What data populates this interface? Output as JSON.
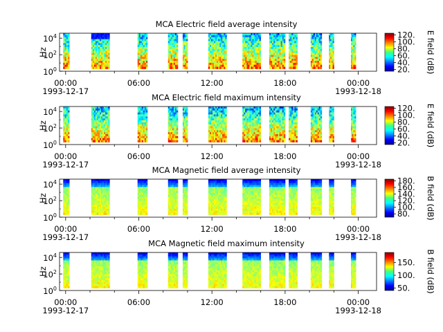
{
  "chart_data": [
    {
      "type": "heatmap",
      "title": "MCA  Electric field average intensity",
      "ylabel": "Hz",
      "colorbar_label": "E field (dB)",
      "colorbar_ticks": [
        "20.",
        "40.",
        "60.",
        "80.",
        "100.",
        "120."
      ],
      "colorbar_range": [
        15,
        125
      ],
      "y_ticks": [
        {
          "base": "10",
          "exp": "0"
        },
        {
          "base": "10",
          "exp": "2"
        },
        {
          "base": "10",
          "exp": "4"
        }
      ],
      "x_ticks": [
        {
          "time": "00:00",
          "date": "1993-12-17"
        },
        {
          "time": "06:00"
        },
        {
          "time": "12:00"
        },
        {
          "time": "18:00"
        },
        {
          "time": "00:00",
          "date": "1993-12-18"
        }
      ],
      "x_range_hours": [
        -0.5,
        25.5
      ],
      "data_blocks_hours": [
        [
          -0.2,
          0.3
        ],
        [
          2.1,
          3.6
        ],
        [
          5.9,
          6.7
        ],
        [
          8.4,
          9.2
        ],
        [
          9.6,
          10.0
        ],
        [
          11.7,
          13.2
        ],
        [
          14.5,
          16.0
        ],
        [
          16.7,
          18.0
        ],
        [
          18.3,
          19.0
        ],
        [
          20.1,
          21.0
        ],
        [
          21.6,
          22.0
        ],
        [
          23.4,
          23.8
        ]
      ],
      "colors_reference": "#000080"
    },
    {
      "type": "heatmap",
      "title": "MCA  Electric field maximum intensity",
      "ylabel": "Hz",
      "colorbar_label": "E field (dB)",
      "colorbar_ticks": [
        "20.",
        "40.",
        "60.",
        "80.",
        "100.",
        "120."
      ],
      "colorbar_range": [
        15,
        125
      ],
      "y_ticks": [
        {
          "base": "10",
          "exp": "0"
        },
        {
          "base": "10",
          "exp": "2"
        },
        {
          "base": "10",
          "exp": "4"
        }
      ],
      "x_ticks": [
        {
          "time": "00:00",
          "date": "1993-12-17"
        },
        {
          "time": "06:00"
        },
        {
          "time": "12:00"
        },
        {
          "time": "18:00"
        },
        {
          "time": "00:00",
          "date": "1993-12-18"
        }
      ],
      "x_range_hours": [
        -0.5,
        25.5
      ],
      "data_blocks_hours": [
        [
          -0.2,
          0.3
        ],
        [
          2.1,
          3.6
        ],
        [
          5.9,
          6.7
        ],
        [
          8.4,
          9.2
        ],
        [
          9.6,
          10.0
        ],
        [
          11.7,
          13.2
        ],
        [
          14.5,
          16.0
        ],
        [
          16.7,
          18.0
        ],
        [
          18.3,
          19.0
        ],
        [
          20.1,
          21.0
        ],
        [
          21.6,
          22.0
        ],
        [
          23.4,
          23.8
        ]
      ]
    },
    {
      "type": "heatmap",
      "title": "MCA  Magnetic field average intensity",
      "ylabel": "Hz",
      "colorbar_label": "B field (dB)",
      "colorbar_ticks": [
        "80.",
        "100.",
        "120.",
        "140.",
        "160.",
        "180."
      ],
      "colorbar_range": [
        70,
        185
      ],
      "y_ticks": [
        {
          "base": "10",
          "exp": "0"
        },
        {
          "base": "10",
          "exp": "2"
        },
        {
          "base": "10",
          "exp": "4"
        }
      ],
      "x_ticks": [
        {
          "time": "00:00",
          "date": "1993-12-17"
        },
        {
          "time": "06:00"
        },
        {
          "time": "12:00"
        },
        {
          "time": "18:00"
        },
        {
          "time": "00:00",
          "date": "1993-12-18"
        }
      ],
      "x_range_hours": [
        -0.5,
        25.5
      ],
      "data_blocks_hours": [
        [
          -0.2,
          0.3
        ],
        [
          2.1,
          3.6
        ],
        [
          5.9,
          6.7
        ],
        [
          8.4,
          9.2
        ],
        [
          9.6,
          10.0
        ],
        [
          11.7,
          13.2
        ],
        [
          14.5,
          16.0
        ],
        [
          16.7,
          18.0
        ],
        [
          18.3,
          19.0
        ],
        [
          20.1,
          21.0
        ],
        [
          21.6,
          22.0
        ],
        [
          23.4,
          23.8
        ]
      ]
    },
    {
      "type": "heatmap",
      "title": "MCA  Magnetic field maximum intensity",
      "ylabel": "Hz",
      "colorbar_label": "B field (dB)",
      "colorbar_ticks": [
        "50.",
        "100.",
        "150."
      ],
      "colorbar_range": [
        40,
        190
      ],
      "y_ticks": [
        {
          "base": "10",
          "exp": "0"
        },
        {
          "base": "10",
          "exp": "2"
        },
        {
          "base": "10",
          "exp": "4"
        }
      ],
      "x_ticks": [
        {
          "time": "00:00",
          "date": "1993-12-17"
        },
        {
          "time": "06:00"
        },
        {
          "time": "12:00"
        },
        {
          "time": "18:00"
        },
        {
          "time": "00:00",
          "date": "1993-12-18"
        }
      ],
      "x_range_hours": [
        -0.5,
        25.5
      ],
      "data_blocks_hours": [
        [
          -0.2,
          0.3
        ],
        [
          2.1,
          3.6
        ],
        [
          5.9,
          6.7
        ],
        [
          8.4,
          9.2
        ],
        [
          9.6,
          10.0
        ],
        [
          11.7,
          13.2
        ],
        [
          14.5,
          16.0
        ],
        [
          16.7,
          18.0
        ],
        [
          18.3,
          19.0
        ],
        [
          20.1,
          21.0
        ],
        [
          21.6,
          22.0
        ],
        [
          23.4,
          23.8
        ]
      ]
    }
  ]
}
